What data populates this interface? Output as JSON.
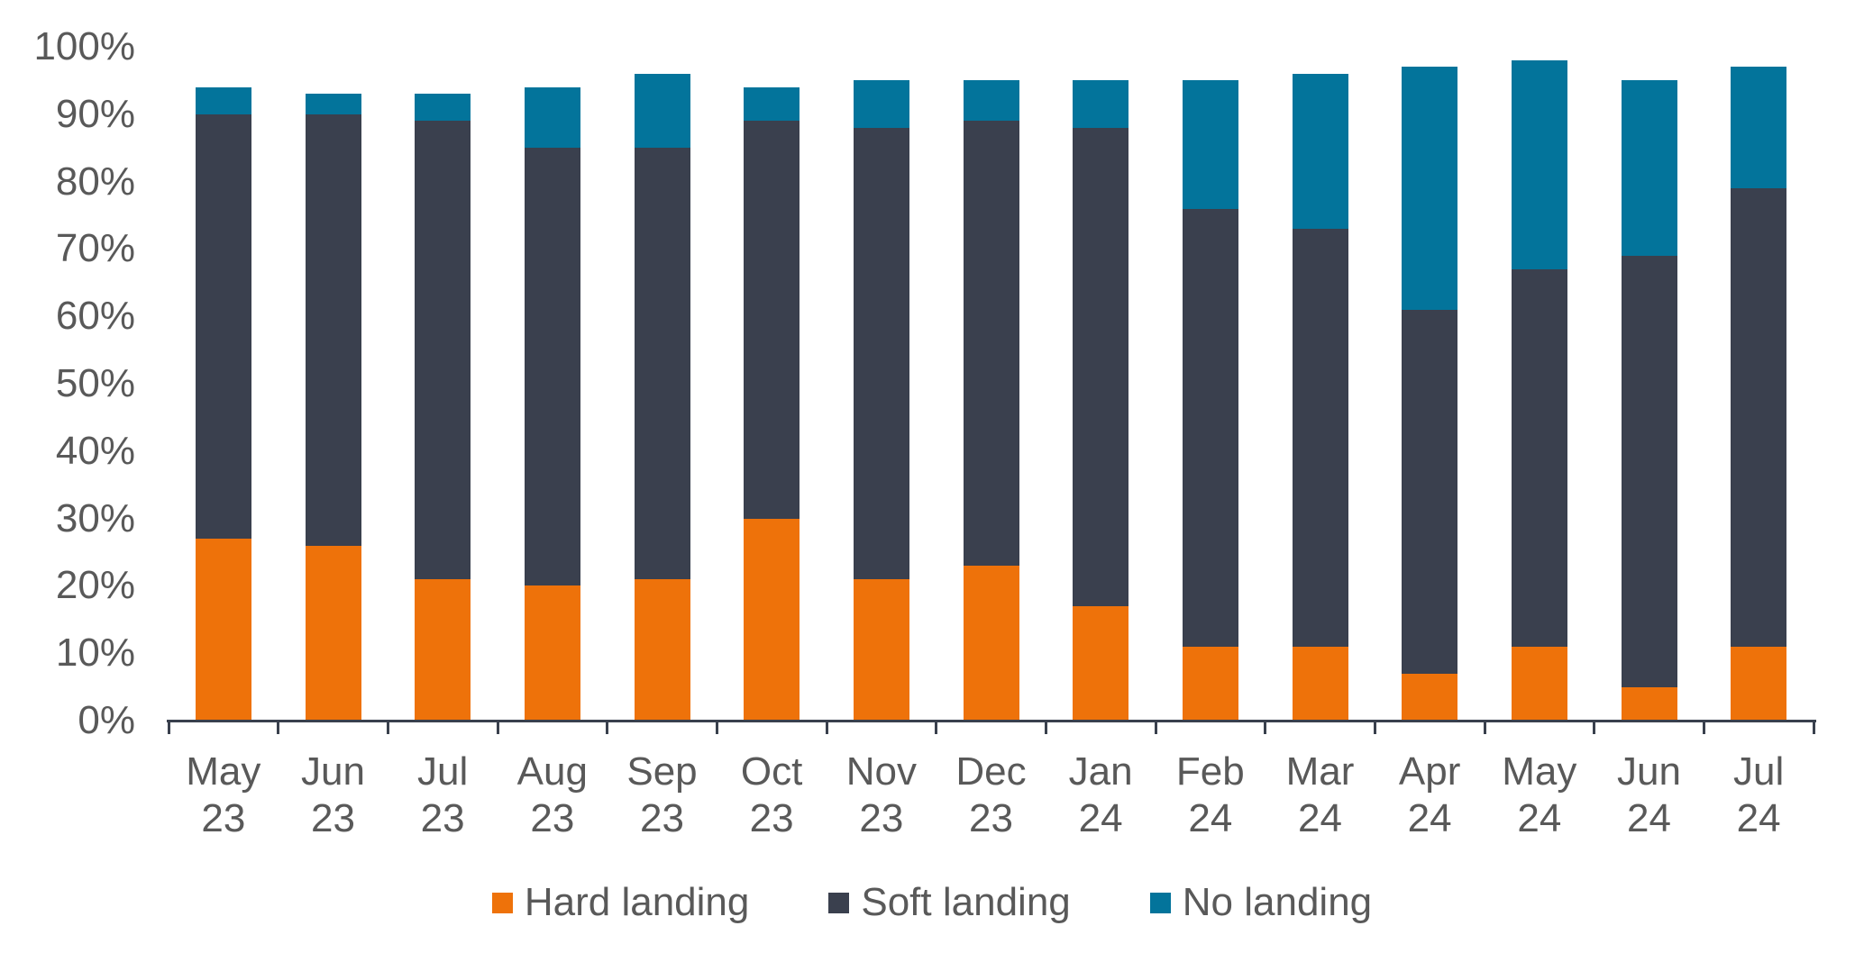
{
  "chart_data": {
    "type": "bar",
    "stacked": true,
    "units": "percent",
    "title": "",
    "xlabel": "",
    "ylabel": "",
    "grid": false,
    "legend_position": "bottom",
    "categories": [
      [
        "May",
        "23"
      ],
      [
        "Jun",
        "23"
      ],
      [
        "Jul",
        "23"
      ],
      [
        "Aug",
        "23"
      ],
      [
        "Sep",
        "23"
      ],
      [
        "Oct",
        "23"
      ],
      [
        "Nov",
        "23"
      ],
      [
        "Dec",
        "23"
      ],
      [
        "Jan",
        "24"
      ],
      [
        "Feb",
        "24"
      ],
      [
        "Mar",
        "24"
      ],
      [
        "Apr",
        "24"
      ],
      [
        "May",
        "24"
      ],
      [
        "Jun",
        "24"
      ],
      [
        "Jul",
        "24"
      ]
    ],
    "series": [
      {
        "name": "Hard landing",
        "color": "#ee720a",
        "values": [
          27,
          26,
          21,
          20,
          21,
          30,
          21,
          23,
          17,
          11,
          11,
          7,
          11,
          5,
          11
        ]
      },
      {
        "name": "Soft landing",
        "color": "#3a404e",
        "values": [
          63,
          64,
          68,
          65,
          64,
          59,
          67,
          66,
          71,
          65,
          62,
          54,
          56,
          64,
          68
        ]
      },
      {
        "name": "No landing",
        "color": "#03749b",
        "values": [
          4,
          3,
          4,
          9,
          11,
          5,
          7,
          6,
          7,
          19,
          23,
          36,
          31,
          26,
          18
        ]
      }
    ],
    "y_axis": {
      "min": 0,
      "max": 100,
      "tick_step": 10,
      "tick_labels": [
        "0%",
        "10%",
        "20%",
        "30%",
        "40%",
        "50%",
        "60%",
        "70%",
        "80%",
        "90%",
        "100%"
      ]
    }
  },
  "style": {
    "axis_line_color": "#39404d",
    "label_color": "#595959"
  }
}
